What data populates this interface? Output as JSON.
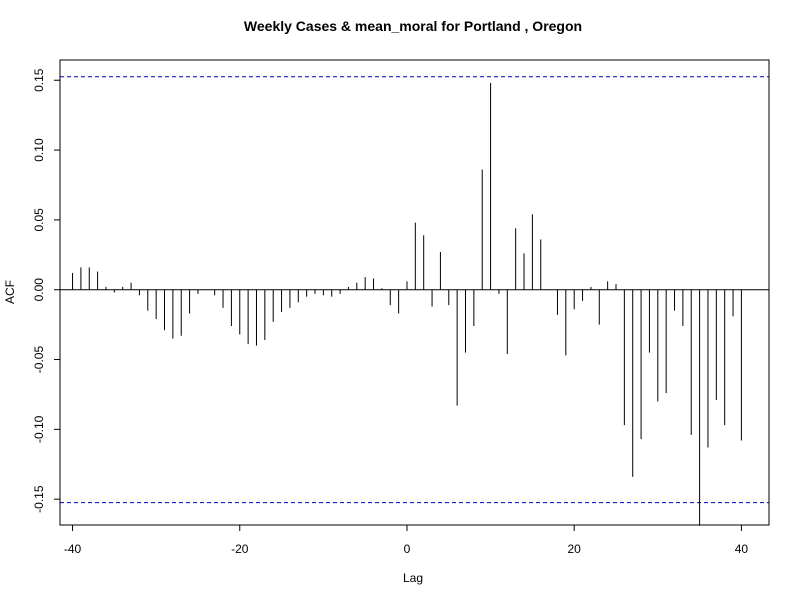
{
  "chart_data": {
    "type": "bar",
    "title": "Weekly Cases & mean_moral for Portland , Oregon",
    "xlabel": "Lag",
    "ylabel": "ACF",
    "xlim": [
      -41.5,
      43.3
    ],
    "ylim": [
      -0.1685,
      0.1645
    ],
    "x_ticks": [
      -40,
      -20,
      0,
      20,
      40
    ],
    "y_ticks": [
      -0.15,
      -0.1,
      -0.05,
      0.0,
      0.05,
      0.1,
      0.15
    ],
    "y_tick_labels": [
      "-0.15",
      "-0.10",
      "-0.05",
      "0.00",
      "0.05",
      "0.10",
      "0.15"
    ],
    "x_tick_labels": [
      "-40",
      "-20",
      "0",
      "20",
      "40"
    ],
    "confidence_bounds": [
      0.1525,
      -0.1525
    ],
    "confidence_color": "#0000cc",
    "line_color": "#000000",
    "lags": [
      -40,
      -39,
      -38,
      -37,
      -36,
      -35,
      -34,
      -33,
      -32,
      -31,
      -30,
      -29,
      -28,
      -27,
      -26,
      -25,
      -24,
      -23,
      -22,
      -21,
      -20,
      -19,
      -18,
      -17,
      -16,
      -15,
      -14,
      -13,
      -12,
      -11,
      -10,
      -9,
      -8,
      -7,
      -6,
      -5,
      -4,
      -3,
      -2,
      -1,
      0,
      1,
      2,
      3,
      4,
      5,
      6,
      7,
      8,
      9,
      10,
      11,
      12,
      13,
      14,
      15,
      16,
      17,
      18,
      19,
      20,
      21,
      22,
      23,
      24,
      25,
      26,
      27,
      28,
      29,
      30,
      31,
      32,
      33,
      34,
      35,
      36,
      37,
      38,
      39,
      40
    ],
    "values": [
      0.012,
      0.016,
      0.016,
      0.013,
      0.002,
      -0.002,
      0.002,
      0.005,
      -0.004,
      -0.015,
      -0.021,
      -0.029,
      -0.035,
      -0.033,
      -0.017,
      -0.003,
      0.0,
      -0.004,
      -0.013,
      -0.026,
      -0.032,
      -0.039,
      -0.04,
      -0.036,
      -0.023,
      -0.016,
      -0.013,
      -0.009,
      -0.005,
      -0.003,
      -0.004,
      -0.005,
      -0.003,
      0.002,
      0.005,
      0.009,
      0.008,
      0.001,
      -0.011,
      -0.017,
      0.006,
      0.048,
      0.039,
      -0.012,
      0.027,
      -0.011,
      -0.083,
      -0.045,
      -0.026,
      0.086,
      0.148,
      -0.003,
      -0.046,
      0.044,
      0.026,
      0.054,
      0.036,
      0.0,
      -0.018,
      -0.047,
      -0.014,
      -0.008,
      0.002,
      -0.025,
      0.006,
      0.004,
      -0.097,
      -0.134,
      -0.107,
      -0.045,
      -0.08,
      -0.074,
      -0.015,
      -0.026,
      -0.104,
      -0.169,
      -0.113,
      -0.079,
      -0.097,
      -0.019,
      -0.108
    ]
  }
}
